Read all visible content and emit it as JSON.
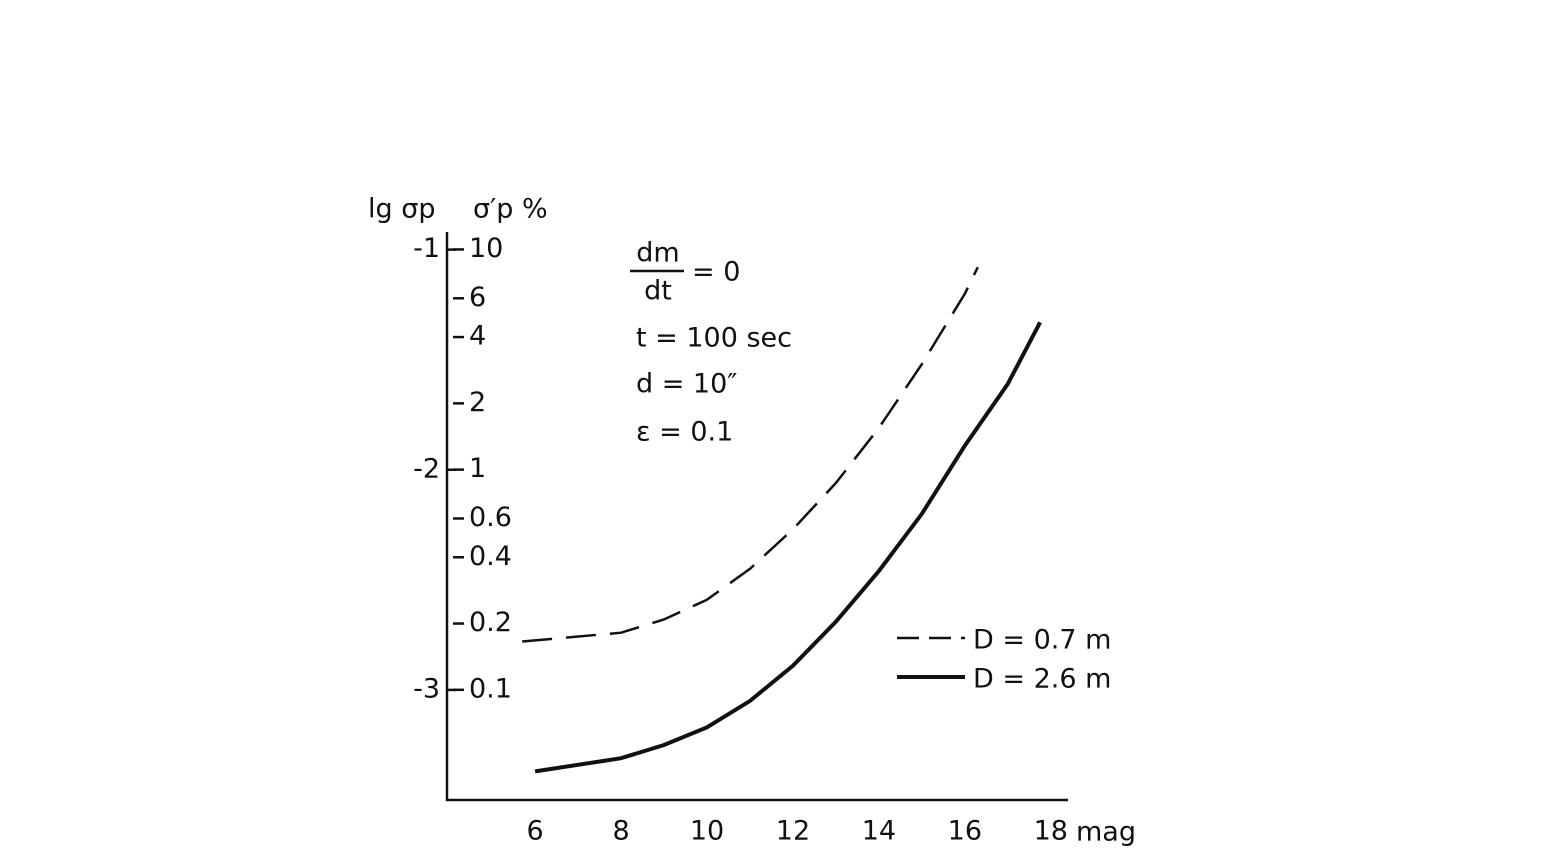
{
  "chart_data": {
    "type": "line",
    "x_label": "mag",
    "y_label": "lg σp",
    "y2_label": "σ′p %",
    "annotations": {
      "fraction_numerator": "dm",
      "fraction_denominator": "dt",
      "fraction_rest": "= 0",
      "lines": [
        "t = 100 sec",
        "d = 10″",
        "ε = 0.1"
      ]
    },
    "xlim": [
      3.95,
      18.4
    ],
    "xticks": [
      6,
      8,
      10,
      12,
      14,
      16,
      18
    ],
    "ylim": [
      -3.5,
      -0.92
    ],
    "yticks": [
      -1,
      -2,
      -3
    ],
    "y2lim": [
      0.0316,
      12.0
    ],
    "y2_log": true,
    "y2ticks": [
      10,
      6,
      4,
      2,
      1,
      0.6,
      0.4,
      0.2,
      0.1
    ],
    "legend": "right",
    "series": [
      {
        "name": "D = 0.7 m",
        "color": "#111111",
        "style": "dashed",
        "x": [
          5.7,
          8,
          9,
          10,
          11,
          12,
          13,
          14,
          15,
          16,
          16.3
        ],
        "values": [
          -2.78,
          -2.74,
          -2.68,
          -2.59,
          -2.45,
          -2.27,
          -2.06,
          -1.81,
          -1.52,
          -1.2,
          -1.08
        ]
      },
      {
        "name": "D = 2.6 m",
        "color": "#111111",
        "style": "solid",
        "x": [
          6,
          8,
          9,
          10,
          11,
          12,
          13,
          14,
          15,
          16,
          17,
          17.75
        ],
        "values": [
          -3.37,
          -3.31,
          -3.25,
          -3.17,
          -3.05,
          -2.89,
          -2.69,
          -2.46,
          -2.2,
          -1.89,
          -1.61,
          -1.33
        ]
      }
    ]
  }
}
